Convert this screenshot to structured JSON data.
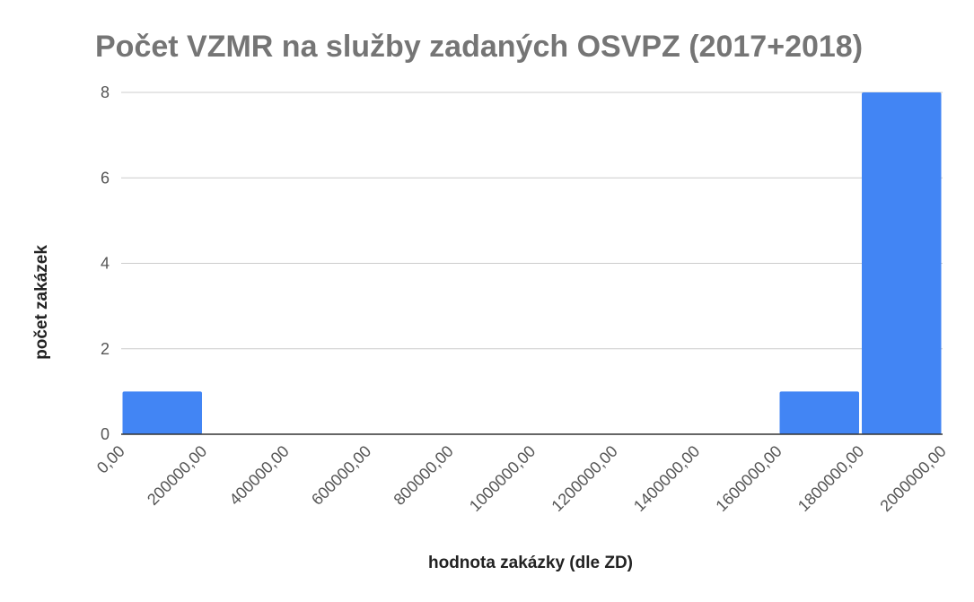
{
  "chart_data": {
    "type": "bar",
    "title": "Počet VZMR na služby zadaných OSVPZ (2017+2018)",
    "xlabel": "hodnota zakázky (dle ZD)",
    "ylabel": "počet zakázek",
    "x_tick_labels": [
      "0,00",
      "200000,00",
      "400000,00",
      "600000,00",
      "800000,00",
      "1000000,00",
      "1200000,00",
      "1400000,00",
      "1600000,00",
      "1800000,00",
      "2000000,00"
    ],
    "x_range": [
      0,
      2000000
    ],
    "ylim": [
      0,
      8
    ],
    "y_ticks": [
      "0",
      "2",
      "4",
      "6",
      "8"
    ],
    "bins": [
      {
        "from": 0,
        "to": 200000,
        "value": 1
      },
      {
        "from": 1600000,
        "to": 1800000,
        "value": 1
      },
      {
        "from": 1800000,
        "to": 2000000,
        "value": 8
      }
    ],
    "grid": true,
    "legend": "none",
    "bar_color": "#4285f4"
  }
}
